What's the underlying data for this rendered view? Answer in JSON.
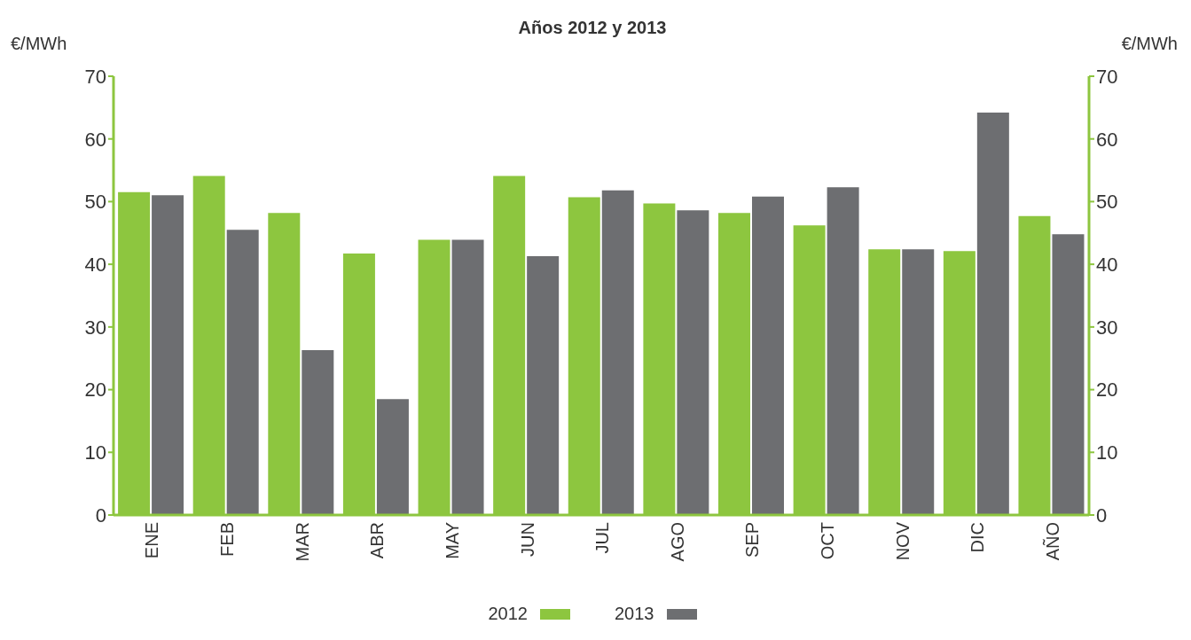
{
  "chart_data": {
    "type": "bar",
    "title": "Años 2012 y 2013",
    "ylabel": "€/MWh",
    "y2label": "€/MWh",
    "categories": [
      "ENE",
      "FEB",
      "MAR",
      "ABR",
      "MAY",
      "JUN",
      "JUL",
      "AGO",
      "SEP",
      "OCT",
      "NOV",
      "DIC",
      "AÑO"
    ],
    "series": [
      {
        "name": "2012",
        "color": "#8dc63f",
        "values": [
          51.5,
          54.1,
          48.2,
          41.7,
          43.9,
          54.1,
          50.7,
          49.7,
          48.2,
          46.2,
          42.4,
          42.1,
          47.7
        ]
      },
      {
        "name": "2013",
        "color": "#6d6e71",
        "values": [
          51.0,
          45.5,
          26.3,
          18.5,
          43.9,
          41.3,
          51.8,
          48.6,
          50.8,
          52.3,
          42.4,
          64.2,
          44.8
        ]
      }
    ],
    "ylim": [
      0,
      70
    ],
    "yticks": [
      0,
      10,
      20,
      30,
      40,
      50,
      60,
      70
    ],
    "y2lim": [
      0,
      70
    ],
    "y2ticks": [
      0,
      10,
      20,
      30,
      40,
      50,
      60,
      70
    ],
    "grid": false,
    "legend": "bottom"
  }
}
